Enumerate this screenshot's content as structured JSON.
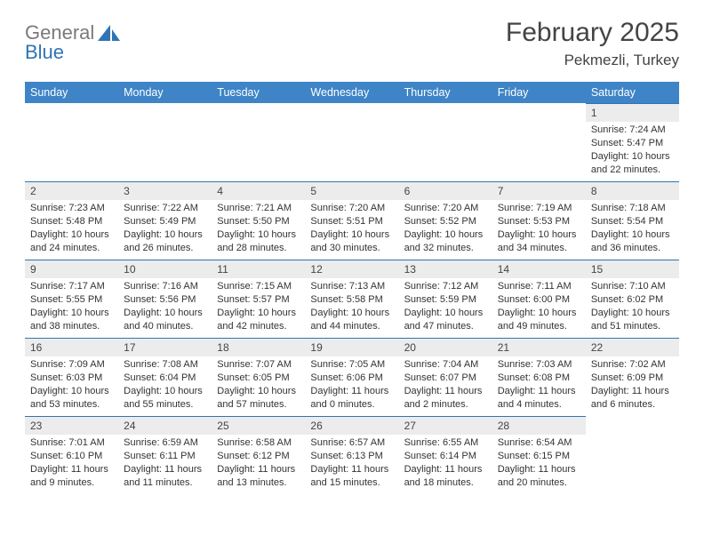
{
  "brand": {
    "part1": "General",
    "part2": "Blue"
  },
  "title": "February 2025",
  "location": "Pekmezli, Turkey",
  "day_headers": [
    "Sunday",
    "Monday",
    "Tuesday",
    "Wednesday",
    "Thursday",
    "Friday",
    "Saturday"
  ],
  "header_bg": "#3e84c6",
  "row_border_color": "#2f74b5",
  "daynum_bg": "#ececec",
  "weeks": [
    [
      null,
      null,
      null,
      null,
      null,
      null,
      {
        "n": "1",
        "sr": "7:24 AM",
        "ss": "5:47 PM",
        "dl": "10 hours and 22 minutes."
      }
    ],
    [
      {
        "n": "2",
        "sr": "7:23 AM",
        "ss": "5:48 PM",
        "dl": "10 hours and 24 minutes."
      },
      {
        "n": "3",
        "sr": "7:22 AM",
        "ss": "5:49 PM",
        "dl": "10 hours and 26 minutes."
      },
      {
        "n": "4",
        "sr": "7:21 AM",
        "ss": "5:50 PM",
        "dl": "10 hours and 28 minutes."
      },
      {
        "n": "5",
        "sr": "7:20 AM",
        "ss": "5:51 PM",
        "dl": "10 hours and 30 minutes."
      },
      {
        "n": "6",
        "sr": "7:20 AM",
        "ss": "5:52 PM",
        "dl": "10 hours and 32 minutes."
      },
      {
        "n": "7",
        "sr": "7:19 AM",
        "ss": "5:53 PM",
        "dl": "10 hours and 34 minutes."
      },
      {
        "n": "8",
        "sr": "7:18 AM",
        "ss": "5:54 PM",
        "dl": "10 hours and 36 minutes."
      }
    ],
    [
      {
        "n": "9",
        "sr": "7:17 AM",
        "ss": "5:55 PM",
        "dl": "10 hours and 38 minutes."
      },
      {
        "n": "10",
        "sr": "7:16 AM",
        "ss": "5:56 PM",
        "dl": "10 hours and 40 minutes."
      },
      {
        "n": "11",
        "sr": "7:15 AM",
        "ss": "5:57 PM",
        "dl": "10 hours and 42 minutes."
      },
      {
        "n": "12",
        "sr": "7:13 AM",
        "ss": "5:58 PM",
        "dl": "10 hours and 44 minutes."
      },
      {
        "n": "13",
        "sr": "7:12 AM",
        "ss": "5:59 PM",
        "dl": "10 hours and 47 minutes."
      },
      {
        "n": "14",
        "sr": "7:11 AM",
        "ss": "6:00 PM",
        "dl": "10 hours and 49 minutes."
      },
      {
        "n": "15",
        "sr": "7:10 AM",
        "ss": "6:02 PM",
        "dl": "10 hours and 51 minutes."
      }
    ],
    [
      {
        "n": "16",
        "sr": "7:09 AM",
        "ss": "6:03 PM",
        "dl": "10 hours and 53 minutes."
      },
      {
        "n": "17",
        "sr": "7:08 AM",
        "ss": "6:04 PM",
        "dl": "10 hours and 55 minutes."
      },
      {
        "n": "18",
        "sr": "7:07 AM",
        "ss": "6:05 PM",
        "dl": "10 hours and 57 minutes."
      },
      {
        "n": "19",
        "sr": "7:05 AM",
        "ss": "6:06 PM",
        "dl": "11 hours and 0 minutes."
      },
      {
        "n": "20",
        "sr": "7:04 AM",
        "ss": "6:07 PM",
        "dl": "11 hours and 2 minutes."
      },
      {
        "n": "21",
        "sr": "7:03 AM",
        "ss": "6:08 PM",
        "dl": "11 hours and 4 minutes."
      },
      {
        "n": "22",
        "sr": "7:02 AM",
        "ss": "6:09 PM",
        "dl": "11 hours and 6 minutes."
      }
    ],
    [
      {
        "n": "23",
        "sr": "7:01 AM",
        "ss": "6:10 PM",
        "dl": "11 hours and 9 minutes."
      },
      {
        "n": "24",
        "sr": "6:59 AM",
        "ss": "6:11 PM",
        "dl": "11 hours and 11 minutes."
      },
      {
        "n": "25",
        "sr": "6:58 AM",
        "ss": "6:12 PM",
        "dl": "11 hours and 13 minutes."
      },
      {
        "n": "26",
        "sr": "6:57 AM",
        "ss": "6:13 PM",
        "dl": "11 hours and 15 minutes."
      },
      {
        "n": "27",
        "sr": "6:55 AM",
        "ss": "6:14 PM",
        "dl": "11 hours and 18 minutes."
      },
      {
        "n": "28",
        "sr": "6:54 AM",
        "ss": "6:15 PM",
        "dl": "11 hours and 20 minutes."
      },
      null
    ]
  ],
  "labels": {
    "sunrise": "Sunrise: ",
    "sunset": "Sunset: ",
    "daylight": "Daylight: "
  }
}
